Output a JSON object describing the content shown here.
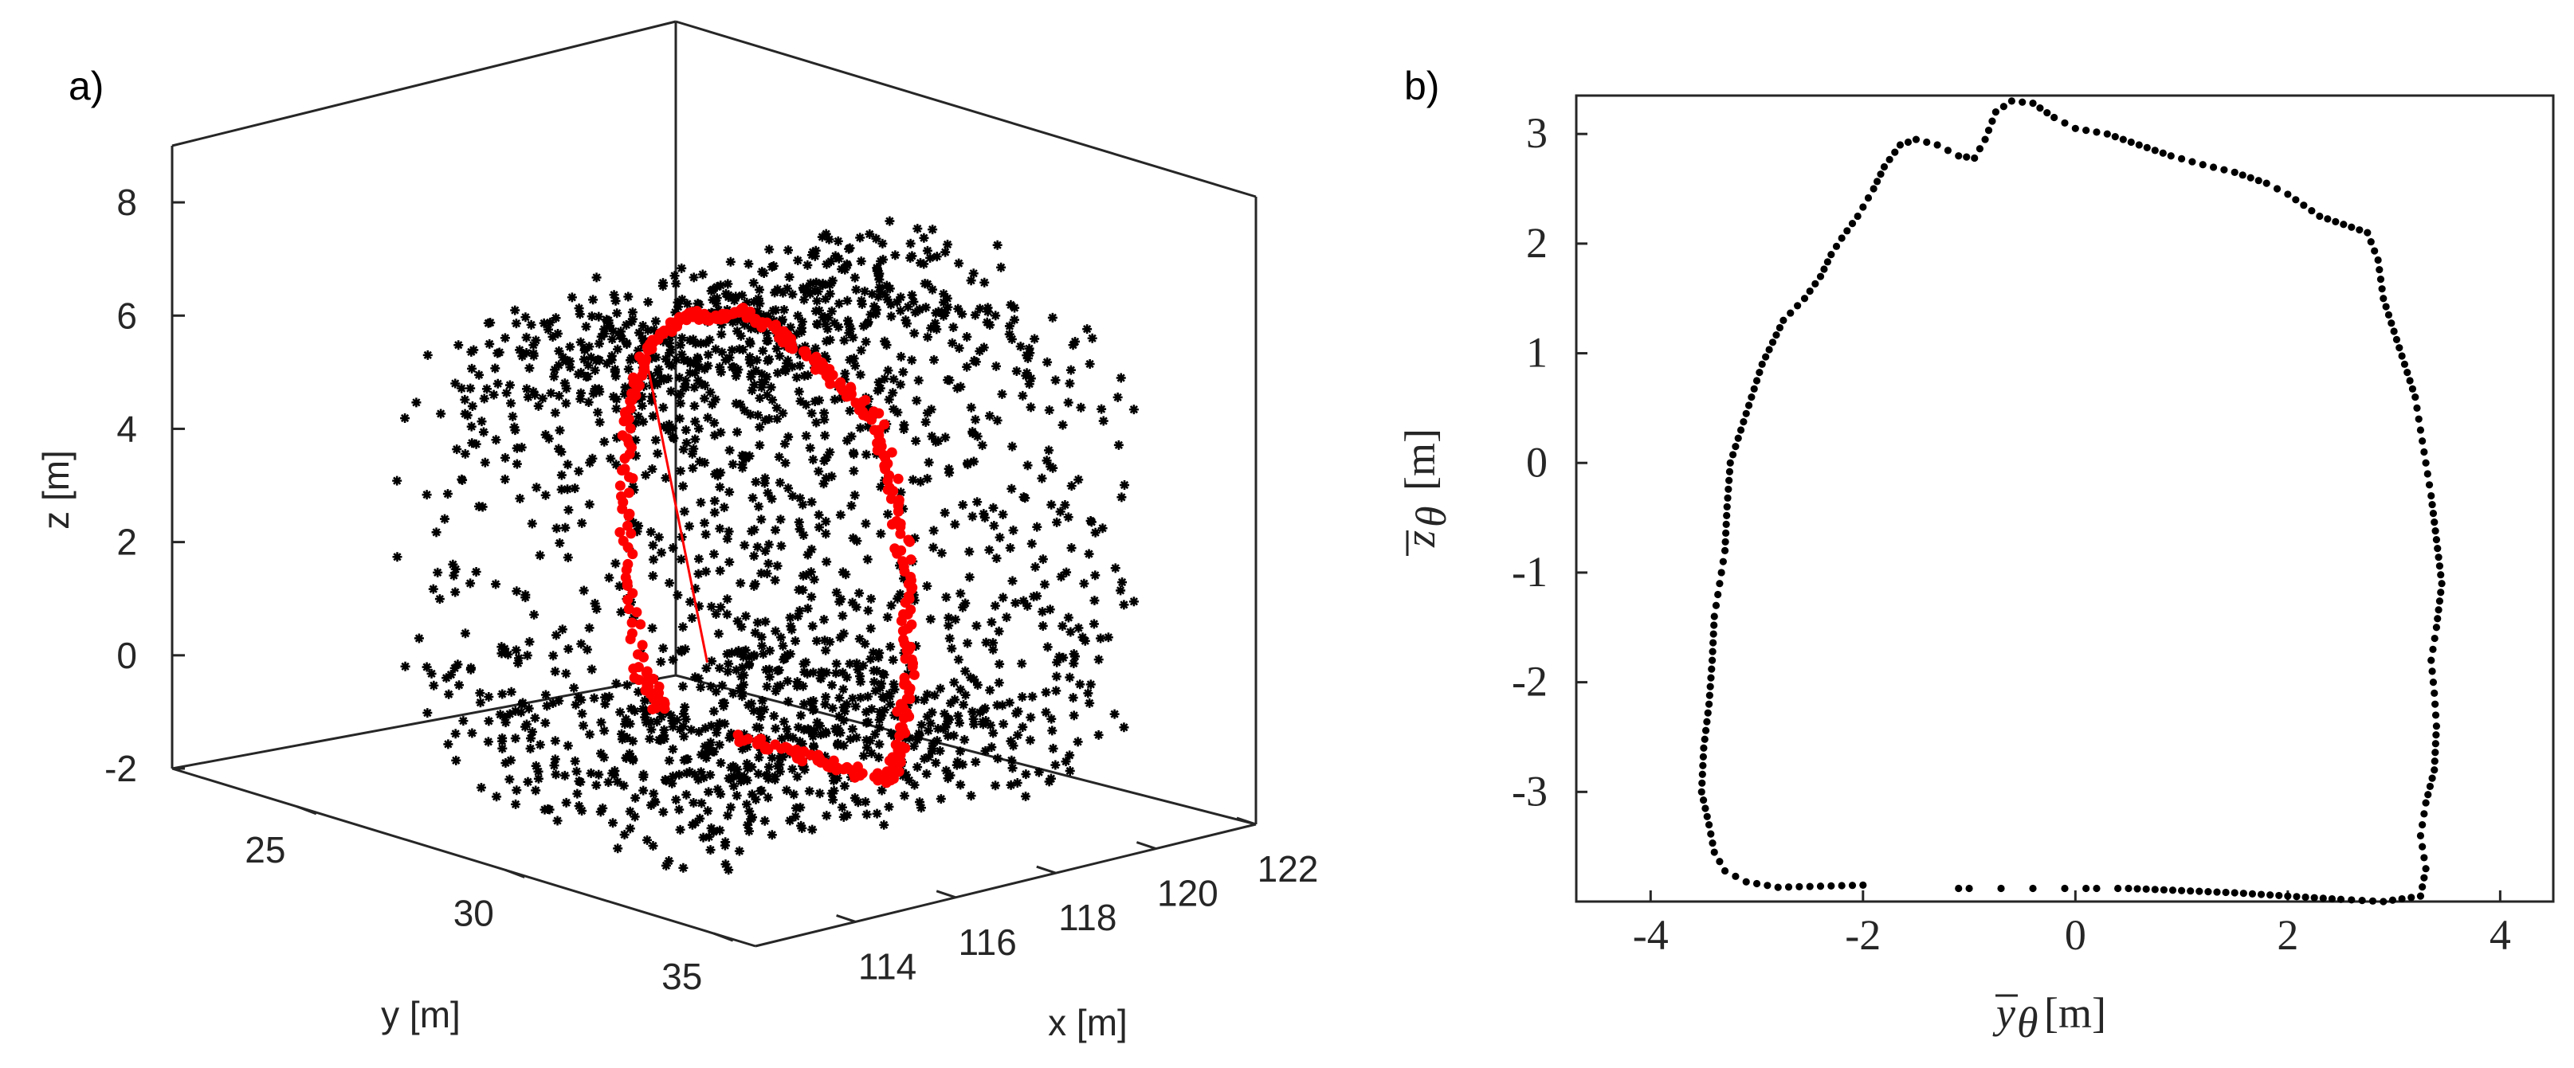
{
  "chart_data": [
    {
      "panel_label": "a)",
      "type": "scatter",
      "dimensions": 3,
      "xlabel": "x [m]",
      "ylabel": "y [m]",
      "zlabel": "z [m]",
      "xlim": [
        112,
        122
      ],
      "ylim": [
        22,
        36
      ],
      "zlim": [
        -2,
        9
      ],
      "x_ticks": [
        "114",
        "116",
        "118",
        "120",
        "122"
      ],
      "y_ticks": [
        "25",
        "30",
        "35"
      ],
      "z_ticks": [
        "-2",
        "0",
        "2",
        "4",
        "6",
        "8"
      ],
      "grid": false,
      "box": true,
      "series": [
        {
          "marker": "asterisk",
          "color": "#000000",
          "description_points": "tunnel point cloud",
          "approx_points": 2500
        },
        {
          "marker": "dot",
          "color": "#ff0000",
          "cross_section_yz": [
            [
              -3.0,
              -3.3
            ],
            [
              -3.4,
              -1.0
            ],
            [
              -3.3,
              1.0
            ],
            [
              -2.8,
              2.2
            ],
            [
              -2.0,
              2.9
            ],
            [
              -1.2,
              3.0
            ],
            [
              -0.6,
              3.3
            ],
            [
              0.5,
              3.0
            ],
            [
              1.6,
              2.6
            ],
            [
              2.6,
              2.2
            ],
            [
              3.1,
              1.0
            ],
            [
              3.4,
              -0.5
            ],
            [
              3.4,
              -2.0
            ],
            [
              3.2,
              -3.3
            ],
            [
              3.0,
              -3.9
            ],
            [
              1.5,
              -3.9
            ],
            [
              0.0,
              -3.9
            ],
            [
              -1.5,
              -3.9
            ],
            [
              -2.5,
              -3.8
            ]
          ]
        },
        {
          "line": true,
          "color": "#ff0000",
          "from": [
            115.2,
            31.0,
            1.2
          ],
          "to": [
            119.0,
            25.0,
            4.3
          ]
        }
      ]
    },
    {
      "panel_label": "b)",
      "type": "scatter",
      "xlabel_main": "y",
      "xlabel_sub": "θ",
      "xlabel_unit": "[m]",
      "ylabel_main": "z",
      "ylabel_sub": "θ",
      "ylabel_unit": "[m]",
      "xlim": [
        -4.7,
        4.5
      ],
      "ylim": [
        -4.0,
        3.35
      ],
      "x_ticks": [
        -4,
        -2,
        0,
        2,
        4
      ],
      "y_ticks": [
        -3,
        -2,
        -1,
        0,
        1,
        2,
        3
      ],
      "grid": false,
      "box": true,
      "series": [
        {
          "marker": "dot",
          "color": "#000000",
          "outline": [
            [
              -2.0,
              -3.85
            ],
            [
              -2.4,
              -3.86
            ],
            [
              -2.8,
              -3.87
            ],
            [
              -3.1,
              -3.82
            ],
            [
              -3.3,
              -3.72
            ],
            [
              -3.4,
              -3.55
            ],
            [
              -3.45,
              -3.3
            ],
            [
              -3.52,
              -3.0
            ],
            [
              -3.5,
              -2.6
            ],
            [
              -3.45,
              -2.2
            ],
            [
              -3.42,
              -1.8
            ],
            [
              -3.4,
              -1.4
            ],
            [
              -3.35,
              -1.1
            ],
            [
              -3.3,
              -0.8
            ],
            [
              -3.28,
              -0.4
            ],
            [
              -3.25,
              0.0
            ],
            [
              -3.15,
              0.3
            ],
            [
              -3.05,
              0.6
            ],
            [
              -2.95,
              0.9
            ],
            [
              -2.85,
              1.1
            ],
            [
              -2.75,
              1.3
            ],
            [
              -2.55,
              1.5
            ],
            [
              -2.4,
              1.7
            ],
            [
              -2.3,
              1.9
            ],
            [
              -2.2,
              2.05
            ],
            [
              -2.05,
              2.25
            ],
            [
              -1.9,
              2.5
            ],
            [
              -1.8,
              2.7
            ],
            [
              -1.65,
              2.9
            ],
            [
              -1.5,
              2.95
            ],
            [
              -1.3,
              2.9
            ],
            [
              -1.1,
              2.8
            ],
            [
              -0.95,
              2.78
            ],
            [
              -0.85,
              2.95
            ],
            [
              -0.75,
              3.2
            ],
            [
              -0.6,
              3.3
            ],
            [
              -0.4,
              3.28
            ],
            [
              -0.2,
              3.15
            ],
            [
              0.0,
              3.05
            ],
            [
              0.3,
              3.0
            ],
            [
              0.6,
              2.9
            ],
            [
              0.9,
              2.8
            ],
            [
              1.2,
              2.72
            ],
            [
              1.5,
              2.65
            ],
            [
              1.8,
              2.55
            ],
            [
              2.0,
              2.45
            ],
            [
              2.3,
              2.25
            ],
            [
              2.6,
              2.15
            ],
            [
              2.75,
              2.1
            ],
            [
              2.85,
              1.85
            ],
            [
              2.9,
              1.5
            ],
            [
              3.0,
              1.2
            ],
            [
              3.1,
              0.9
            ],
            [
              3.2,
              0.6
            ],
            [
              3.25,
              0.3
            ],
            [
              3.3,
              0.0
            ],
            [
              3.35,
              -0.3
            ],
            [
              3.4,
              -0.7
            ],
            [
              3.45,
              -1.1
            ],
            [
              3.4,
              -1.5
            ],
            [
              3.35,
              -1.8
            ],
            [
              3.38,
              -2.1
            ],
            [
              3.4,
              -2.4
            ],
            [
              3.38,
              -2.8
            ],
            [
              3.3,
              -3.1
            ],
            [
              3.25,
              -3.4
            ],
            [
              3.3,
              -3.7
            ],
            [
              3.25,
              -3.95
            ],
            [
              2.9,
              -4.0
            ],
            [
              2.5,
              -3.98
            ],
            [
              2.0,
              -3.95
            ],
            [
              1.5,
              -3.92
            ],
            [
              1.0,
              -3.9
            ],
            [
              0.5,
              -3.88
            ],
            [
              0.1,
              -3.88
            ],
            [
              -0.1,
              -3.88
            ],
            [
              -0.4,
              -3.88
            ],
            [
              -0.7,
              -3.88
            ],
            [
              -1.0,
              -3.88
            ],
            [
              -1.2,
              -3.88
            ]
          ]
        }
      ]
    }
  ]
}
